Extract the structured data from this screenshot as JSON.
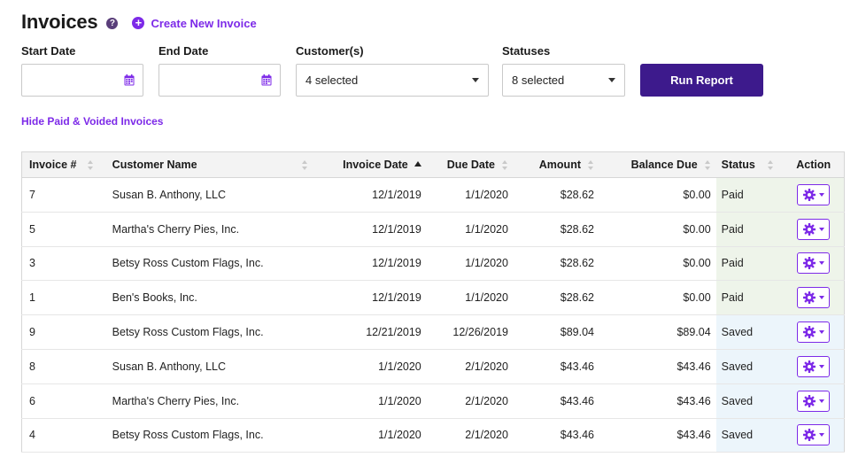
{
  "page": {
    "title": "Invoices",
    "help_icon": "question-circle-icon",
    "create_label": "Create New Invoice",
    "create_icon": "plus-circle-icon",
    "accent_color": "#7d2ae8",
    "button_color": "#3d1a8c"
  },
  "filters": {
    "start_date": {
      "label": "Start Date",
      "value": "",
      "icon": "calendar-icon"
    },
    "end_date": {
      "label": "End Date",
      "value": "",
      "icon": "calendar-icon"
    },
    "customers": {
      "label": "Customer(s)",
      "value": "4 selected"
    },
    "statuses": {
      "label": "Statuses",
      "value": "8 selected"
    },
    "run_label": "Run Report"
  },
  "hide_link": "Hide Paid & Voided Invoices",
  "table": {
    "columns": [
      "Invoice #",
      "Customer Name",
      "Invoice Date",
      "Due Date",
      "Amount",
      "Balance Due",
      "Status",
      "Action"
    ],
    "sorted_by": "Invoice Date",
    "sort_direction": "ascending",
    "rows": [
      {
        "number": "7",
        "customer": "Susan B. Anthony, LLC",
        "invoice_date": "12/1/2019",
        "due_date": "1/1/2020",
        "amount": "$28.62",
        "balance": "$0.00",
        "status": "Paid"
      },
      {
        "number": "5",
        "customer": "Martha's Cherry Pies, Inc.",
        "invoice_date": "12/1/2019",
        "due_date": "1/1/2020",
        "amount": "$28.62",
        "balance": "$0.00",
        "status": "Paid"
      },
      {
        "number": "3",
        "customer": "Betsy Ross Custom Flags, Inc.",
        "invoice_date": "12/1/2019",
        "due_date": "1/1/2020",
        "amount": "$28.62",
        "balance": "$0.00",
        "status": "Paid"
      },
      {
        "number": "1",
        "customer": "Ben's Books, Inc.",
        "invoice_date": "12/1/2019",
        "due_date": "1/1/2020",
        "amount": "$28.62",
        "balance": "$0.00",
        "status": "Paid"
      },
      {
        "number": "9",
        "customer": "Betsy Ross Custom Flags, Inc.",
        "invoice_date": "12/21/2019",
        "due_date": "12/26/2019",
        "amount": "$89.04",
        "balance": "$89.04",
        "status": "Saved"
      },
      {
        "number": "8",
        "customer": "Susan B. Anthony, LLC",
        "invoice_date": "1/1/2020",
        "due_date": "2/1/2020",
        "amount": "$43.46",
        "balance": "$43.46",
        "status": "Saved"
      },
      {
        "number": "6",
        "customer": "Martha's Cherry Pies, Inc.",
        "invoice_date": "1/1/2020",
        "due_date": "2/1/2020",
        "amount": "$43.46",
        "balance": "$43.46",
        "status": "Saved"
      },
      {
        "number": "4",
        "customer": "Betsy Ross Custom Flags, Inc.",
        "invoice_date": "1/1/2020",
        "due_date": "2/1/2020",
        "amount": "$43.46",
        "balance": "$43.46",
        "status": "Saved"
      }
    ],
    "action_icon": "gear-icon",
    "status_colors": {
      "Paid": "#eef4ea",
      "Saved": "#ecf5fb"
    }
  }
}
